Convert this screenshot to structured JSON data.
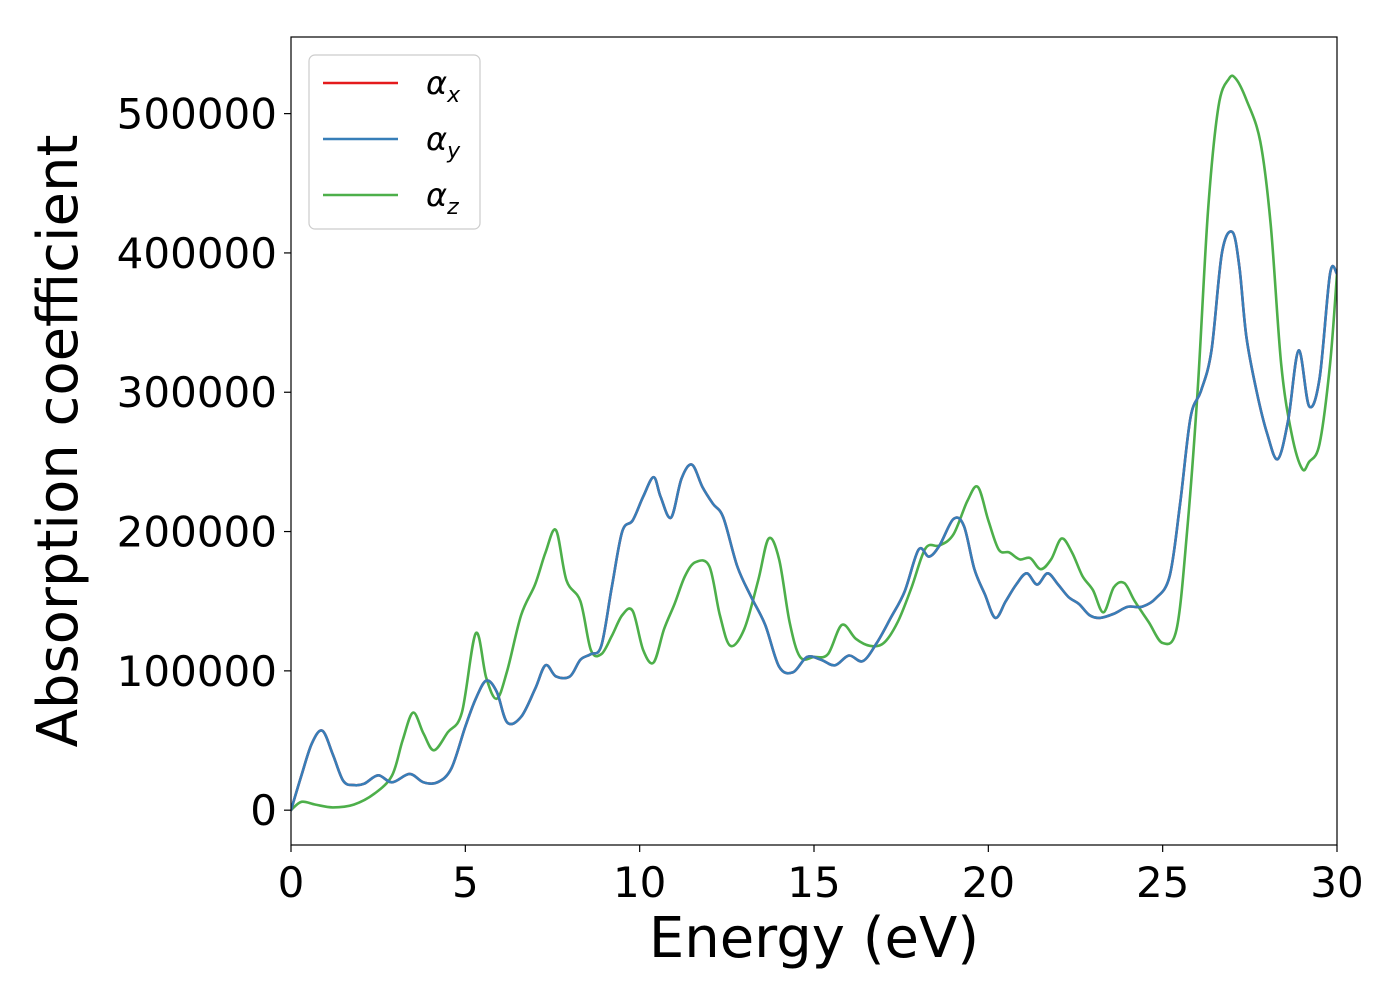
{
  "chart_data": {
    "type": "line",
    "title": "",
    "xlabel": "Energy (eV)",
    "ylabel": "Absorption coefficient",
    "xlim": [
      0,
      30
    ],
    "ylim": [
      -25000,
      555000
    ],
    "xticks": [
      0,
      5,
      10,
      15,
      20,
      25,
      30
    ],
    "yticks": [
      0,
      100000,
      200000,
      300000,
      400000,
      500000
    ],
    "grid": false,
    "legend": {
      "placement": "top-left",
      "entries": [
        {
          "symbol": "α",
          "sub": "x",
          "color": "#e41a1c"
        },
        {
          "symbol": "α",
          "sub": "y",
          "color": "#377eb8"
        },
        {
          "symbol": "α",
          "sub": "z",
          "color": "#4daf4a"
        }
      ]
    },
    "series": [
      {
        "label": "αx",
        "color": "#e41a1c",
        "x": [
          0,
          0.3,
          0.6,
          0.9,
          1.2,
          1.5,
          1.8,
          2.1,
          2.5,
          2.9,
          3.4,
          3.8,
          4.2,
          4.6,
          5.0,
          5.3,
          5.6,
          5.9,
          6.2,
          6.6,
          7.0,
          7.3,
          7.6,
          8.0,
          8.3,
          8.6,
          8.9,
          9.2,
          9.5,
          9.8,
          10.1,
          10.4,
          10.6,
          10.9,
          11.2,
          11.5,
          11.8,
          12.1,
          12.4,
          12.8,
          13.2,
          13.6,
          14.0,
          14.4,
          14.8,
          15.2,
          15.6,
          16.0,
          16.4,
          16.8,
          17.2,
          17.6,
          18.0,
          18.3,
          18.6,
          19.0,
          19.3,
          19.6,
          19.9,
          20.2,
          20.5,
          20.8,
          21.1,
          21.4,
          21.7,
          22.0,
          22.3,
          22.6,
          22.9,
          23.2,
          23.6,
          24.0,
          24.4,
          24.8,
          25.2,
          25.5,
          25.8,
          26.1,
          26.4,
          26.7,
          27.0,
          27.2,
          27.4,
          27.7,
          28.0,
          28.3,
          28.6,
          28.9,
          29.2,
          29.5,
          29.8,
          30.0
        ],
        "y": [
          0,
          25000,
          48000,
          57000,
          40000,
          21000,
          18000,
          19000,
          25000,
          20000,
          26000,
          20000,
          20000,
          30000,
          60000,
          80000,
          93000,
          85000,
          63000,
          67000,
          87000,
          104000,
          96000,
          96000,
          108000,
          112000,
          118000,
          160000,
          200000,
          208000,
          225000,
          239000,
          225000,
          210000,
          238000,
          248000,
          232000,
          220000,
          210000,
          175000,
          153000,
          133000,
          103000,
          99000,
          110000,
          108000,
          104000,
          111000,
          107000,
          120000,
          138000,
          157000,
          187000,
          182000,
          190000,
          209000,
          204000,
          173000,
          155000,
          138000,
          150000,
          162000,
          170000,
          162000,
          170000,
          162000,
          153000,
          148000,
          140000,
          138000,
          141000,
          146000,
          146000,
          152000,
          168000,
          220000,
          282000,
          301000,
          330000,
          400000,
          415000,
          390000,
          340000,
          300000,
          270000,
          252000,
          280000,
          330000,
          290000,
          310000,
          385000,
          385000
        ]
      },
      {
        "label": "αy",
        "color": "#377eb8",
        "x": [
          0,
          0.3,
          0.6,
          0.9,
          1.2,
          1.5,
          1.8,
          2.1,
          2.5,
          2.9,
          3.4,
          3.8,
          4.2,
          4.6,
          5.0,
          5.3,
          5.6,
          5.9,
          6.2,
          6.6,
          7.0,
          7.3,
          7.6,
          8.0,
          8.3,
          8.6,
          8.9,
          9.2,
          9.5,
          9.8,
          10.1,
          10.4,
          10.6,
          10.9,
          11.2,
          11.5,
          11.8,
          12.1,
          12.4,
          12.8,
          13.2,
          13.6,
          14.0,
          14.4,
          14.8,
          15.2,
          15.6,
          16.0,
          16.4,
          16.8,
          17.2,
          17.6,
          18.0,
          18.3,
          18.6,
          19.0,
          19.3,
          19.6,
          19.9,
          20.2,
          20.5,
          20.8,
          21.1,
          21.4,
          21.7,
          22.0,
          22.3,
          22.6,
          22.9,
          23.2,
          23.6,
          24.0,
          24.4,
          24.8,
          25.2,
          25.5,
          25.8,
          26.1,
          26.4,
          26.7,
          27.0,
          27.2,
          27.4,
          27.7,
          28.0,
          28.3,
          28.6,
          28.9,
          29.2,
          29.5,
          29.8,
          30.0
        ],
        "y": [
          0,
          25000,
          48000,
          57000,
          40000,
          21000,
          18000,
          19000,
          25000,
          20000,
          26000,
          20000,
          20000,
          30000,
          60000,
          80000,
          93000,
          85000,
          63000,
          67000,
          87000,
          104000,
          96000,
          96000,
          108000,
          112000,
          118000,
          160000,
          200000,
          208000,
          225000,
          239000,
          225000,
          210000,
          238000,
          248000,
          232000,
          220000,
          210000,
          175000,
          153000,
          133000,
          103000,
          99000,
          110000,
          108000,
          104000,
          111000,
          107000,
          120000,
          138000,
          157000,
          187000,
          182000,
          190000,
          209000,
          204000,
          173000,
          155000,
          138000,
          150000,
          162000,
          170000,
          162000,
          170000,
          162000,
          153000,
          148000,
          140000,
          138000,
          141000,
          146000,
          146000,
          152000,
          168000,
          220000,
          282000,
          301000,
          330000,
          400000,
          415000,
          390000,
          340000,
          300000,
          270000,
          252000,
          280000,
          330000,
          290000,
          310000,
          385000,
          385000
        ]
      },
      {
        "label": "αz",
        "color": "#4daf4a",
        "x": [
          0,
          0.3,
          0.7,
          1.2,
          1.8,
          2.4,
          2.9,
          3.2,
          3.5,
          3.8,
          4.1,
          4.5,
          4.9,
          5.3,
          5.6,
          5.9,
          6.2,
          6.6,
          7.0,
          7.3,
          7.6,
          7.9,
          8.3,
          8.6,
          8.9,
          9.2,
          9.5,
          9.8,
          10.1,
          10.4,
          10.7,
          11.0,
          11.3,
          11.6,
          12.0,
          12.3,
          12.6,
          13.0,
          13.4,
          13.7,
          14.0,
          14.3,
          14.6,
          15.0,
          15.4,
          15.8,
          16.2,
          16.6,
          17.0,
          17.4,
          17.8,
          18.2,
          18.6,
          19.0,
          19.4,
          19.7,
          20.0,
          20.3,
          20.6,
          20.9,
          21.2,
          21.5,
          21.8,
          22.1,
          22.4,
          22.7,
          23.0,
          23.3,
          23.6,
          23.9,
          24.2,
          24.6,
          25.0,
          25.4,
          25.7,
          26.0,
          26.3,
          26.6,
          26.9,
          27.1,
          27.4,
          27.8,
          28.1,
          28.4,
          28.7,
          29.0,
          29.2,
          29.5,
          29.8,
          30.0
        ],
        "y": [
          0,
          6000,
          4000,
          2000,
          4000,
          12000,
          25000,
          50000,
          70000,
          55000,
          43000,
          56000,
          70000,
          127000,
          95000,
          80000,
          100000,
          140000,
          162000,
          185000,
          201000,
          165000,
          150000,
          115000,
          112000,
          125000,
          140000,
          143000,
          115000,
          106000,
          130000,
          148000,
          168000,
          178000,
          175000,
          140000,
          118000,
          130000,
          165000,
          195000,
          180000,
          135000,
          110000,
          110000,
          112000,
          133000,
          123000,
          118000,
          120000,
          135000,
          160000,
          188000,
          190000,
          198000,
          222000,
          232000,
          208000,
          187000,
          185000,
          180000,
          181000,
          173000,
          180000,
          195000,
          185000,
          168000,
          158000,
          142000,
          160000,
          163000,
          150000,
          135000,
          120000,
          130000,
          200000,
          300000,
          430000,
          505000,
          525000,
          525000,
          510000,
          480000,
          420000,
          320000,
          270000,
          245000,
          250000,
          263000,
          320000,
          385000
        ]
      }
    ]
  }
}
